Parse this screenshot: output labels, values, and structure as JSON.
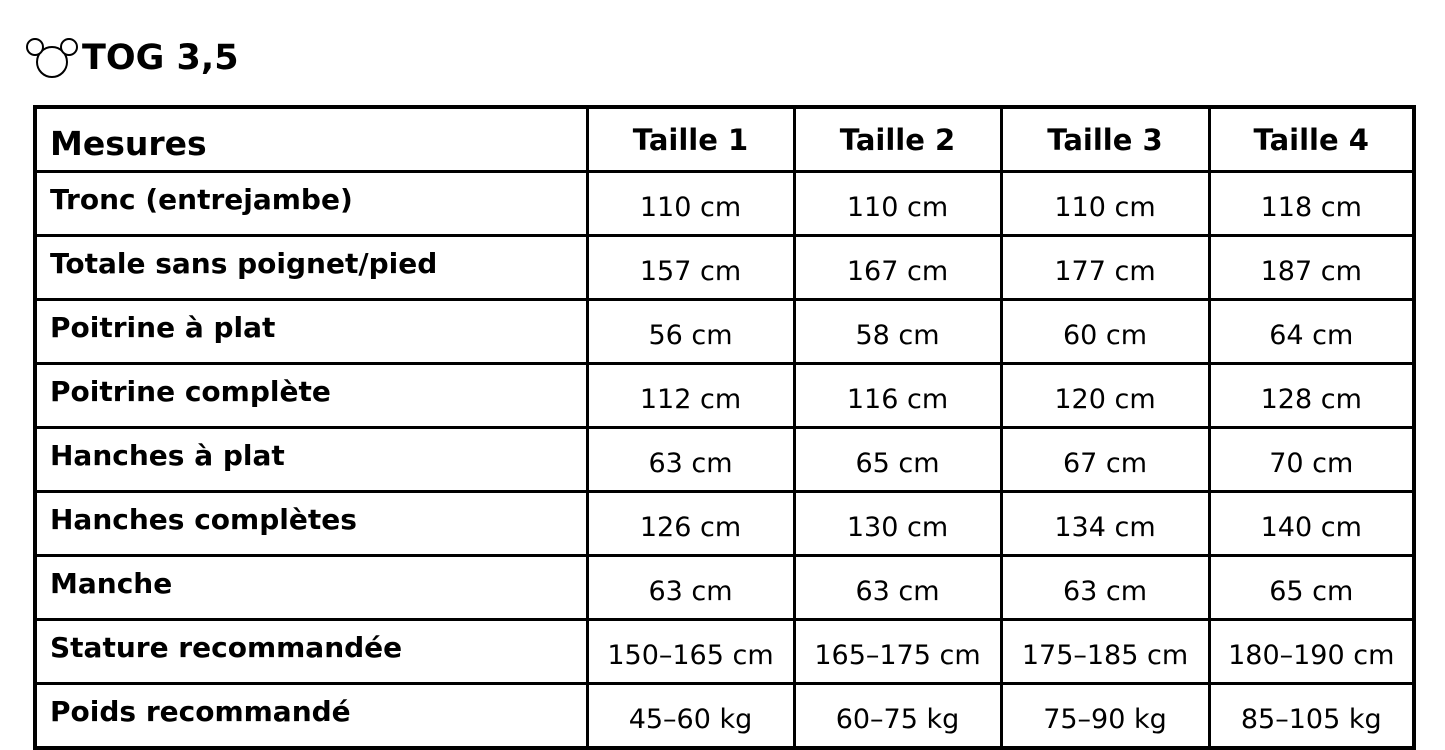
{
  "title": {
    "icon": "bear-ears-icon",
    "text": "TOG 3,5"
  },
  "table": {
    "headers": [
      "Mesures",
      "Taille 1",
      "Taille 2",
      "Taille 3",
      "Taille 4"
    ],
    "rows": [
      {
        "label": "Tronc (entrejambe)",
        "values": [
          "110 cm",
          "110 cm",
          "110 cm",
          "118 cm"
        ]
      },
      {
        "label": "Totale sans poignet/pied",
        "values": [
          "157 cm",
          "167 cm",
          "177 cm",
          "187 cm"
        ]
      },
      {
        "label": "Poitrine à plat",
        "values": [
          "56 cm",
          "58 cm",
          "60 cm",
          "64 cm"
        ]
      },
      {
        "label": "Poitrine complète",
        "values": [
          "112 cm",
          "116 cm",
          "120 cm",
          "128 cm"
        ]
      },
      {
        "label": "Hanches à plat",
        "values": [
          "63 cm",
          "65 cm",
          "67 cm",
          "70 cm"
        ]
      },
      {
        "label": "Hanches complètes",
        "values": [
          "126 cm",
          "130 cm",
          "134 cm",
          "140 cm"
        ]
      },
      {
        "label": "Manche",
        "values": [
          "63 cm",
          "63 cm",
          "63 cm",
          "65 cm"
        ]
      },
      {
        "label": "Stature recommandée",
        "values": [
          "150–165 cm",
          "165–175 cm",
          "175–185 cm",
          "180–190 cm"
        ]
      },
      {
        "label": "Poids recommandé",
        "values": [
          "45–60 kg",
          "60–75 kg",
          "75–90 kg",
          "85–105 kg"
        ]
      }
    ]
  }
}
